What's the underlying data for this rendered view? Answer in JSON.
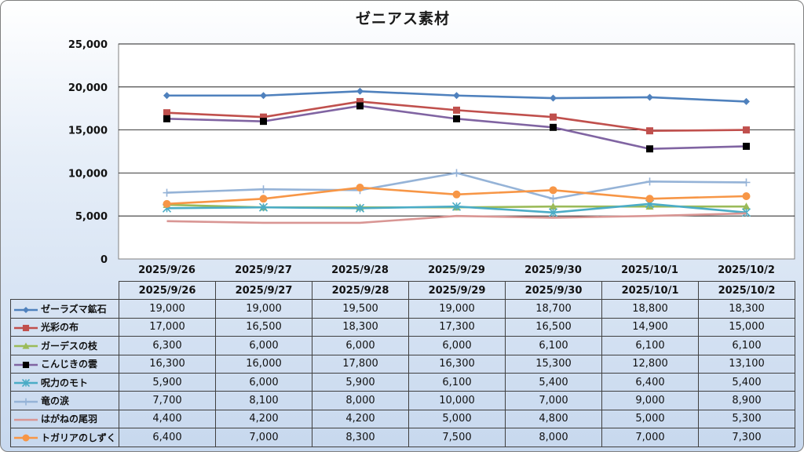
{
  "chart_data": {
    "type": "line",
    "title": "ゼニアス素材",
    "categories": [
      "2025/9/26",
      "2025/9/27",
      "2025/9/28",
      "2025/9/29",
      "2025/9/30",
      "2025/10/1",
      "2025/10/2"
    ],
    "ylim": [
      0,
      25000
    ],
    "yticks": [
      0,
      5000,
      10000,
      15000,
      20000,
      25000
    ],
    "ytick_labels": [
      "0",
      "5,000",
      "10,000",
      "15,000",
      "20,000",
      "25,000"
    ],
    "grid": true,
    "legend": "data-table",
    "series": [
      {
        "name": "ゼーラズマ鉱石",
        "color": "#4f81bd",
        "marker": "diamond",
        "values": [
          19000,
          19000,
          19500,
          19000,
          18700,
          18800,
          18300
        ],
        "labels": [
          "19,000",
          "19,000",
          "19,500",
          "19,000",
          "18,700",
          "18,800",
          "18,300"
        ]
      },
      {
        "name": "光彩の布",
        "color": "#c0504d",
        "marker": "square",
        "values": [
          17000,
          16500,
          18300,
          17300,
          16500,
          14900,
          15000
        ],
        "labels": [
          "17,000",
          "16,500",
          "18,300",
          "17,300",
          "16,500",
          "14,900",
          "15,000"
        ]
      },
      {
        "name": "ガーデスの枝",
        "color": "#9bbb59",
        "marker": "triangle",
        "values": [
          6300,
          6000,
          6000,
          6000,
          6100,
          6100,
          6100
        ],
        "labels": [
          "6,300",
          "6,000",
          "6,000",
          "6,000",
          "6,100",
          "6,100",
          "6,100"
        ]
      },
      {
        "name": "こんじきの雲",
        "color": "#8064a2",
        "marker": "blacksquare",
        "values": [
          16300,
          16000,
          17800,
          16300,
          15300,
          12800,
          13100
        ],
        "labels": [
          "16,300",
          "16,000",
          "17,800",
          "16,300",
          "15,300",
          "12,800",
          "13,100"
        ]
      },
      {
        "name": "呪力のモト",
        "color": "#4bacc6",
        "marker": "star",
        "values": [
          5900,
          6000,
          5900,
          6100,
          5400,
          6400,
          5400
        ],
        "labels": [
          "5,900",
          "6,000",
          "5,900",
          "6,100",
          "5,400",
          "6,400",
          "5,400"
        ]
      },
      {
        "name": "竜の涙",
        "color": "#95b3d7",
        "marker": "plus",
        "values": [
          7700,
          8100,
          8000,
          10000,
          7000,
          9000,
          8900
        ],
        "labels": [
          "7,700",
          "8,100",
          "8,000",
          "10,000",
          "7,000",
          "9,000",
          "8,900"
        ]
      },
      {
        "name": "はがねの尾羽",
        "color": "#d99694",
        "marker": "none",
        "values": [
          4400,
          4200,
          4200,
          5000,
          4800,
          5000,
          5300
        ],
        "labels": [
          "4,400",
          "4,200",
          "4,200",
          "5,000",
          "4,800",
          "5,000",
          "5,300"
        ]
      },
      {
        "name": "トガリアのしずく",
        "color": "#f79646",
        "marker": "circle",
        "values": [
          6400,
          7000,
          8300,
          7500,
          8000,
          7000,
          7300
        ],
        "labels": [
          "6,400",
          "7,000",
          "8,300",
          "7,500",
          "8,000",
          "7,000",
          "7,300"
        ]
      }
    ]
  }
}
